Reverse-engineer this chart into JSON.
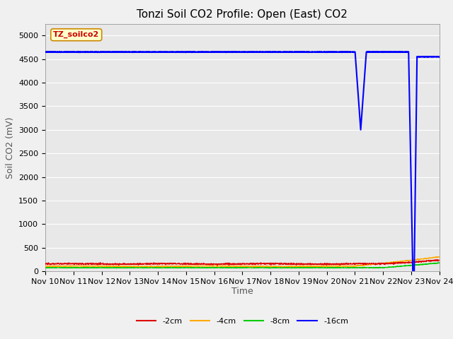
{
  "title": "Tonzi Soil CO2 Profile: Open (East) CO2",
  "ylabel": "Soil CO2 (mV)",
  "xlabel": "Time",
  "watermark": "TZ_soilco2",
  "ylim": [
    0,
    5250
  ],
  "yticks": [
    0,
    500,
    1000,
    1500,
    2000,
    2500,
    3000,
    3500,
    4000,
    4500,
    5000
  ],
  "xtick_labels": [
    "Nov 10",
    "Nov 11",
    "Nov 12",
    "Nov 13",
    "Nov 14",
    "Nov 15",
    "Nov 16",
    "Nov 17",
    "Nov 18",
    "Nov 19",
    "Nov 20",
    "Nov 21",
    "Nov 22",
    "Nov 23",
    "Nov 24"
  ],
  "outer_bg_color": "#f0f0f0",
  "plot_bg_color": "#e8e8e8",
  "grid_color": "#ffffff",
  "line_colors": {
    "-2cm": "#dd0000",
    "-4cm": "#ffaa00",
    "-8cm": "#00cc00",
    "-16cm": "#0000ff"
  },
  "legend_labels": [
    "-2cm",
    "-4cm",
    "-8cm",
    "-16cm"
  ],
  "title_fontsize": 11,
  "axis_fontsize": 9,
  "tick_fontsize": 8,
  "watermark_fontsize": 8,
  "watermark_color": "#cc0000",
  "watermark_bg": "#ffffcc",
  "watermark_edge": "#cc8800"
}
